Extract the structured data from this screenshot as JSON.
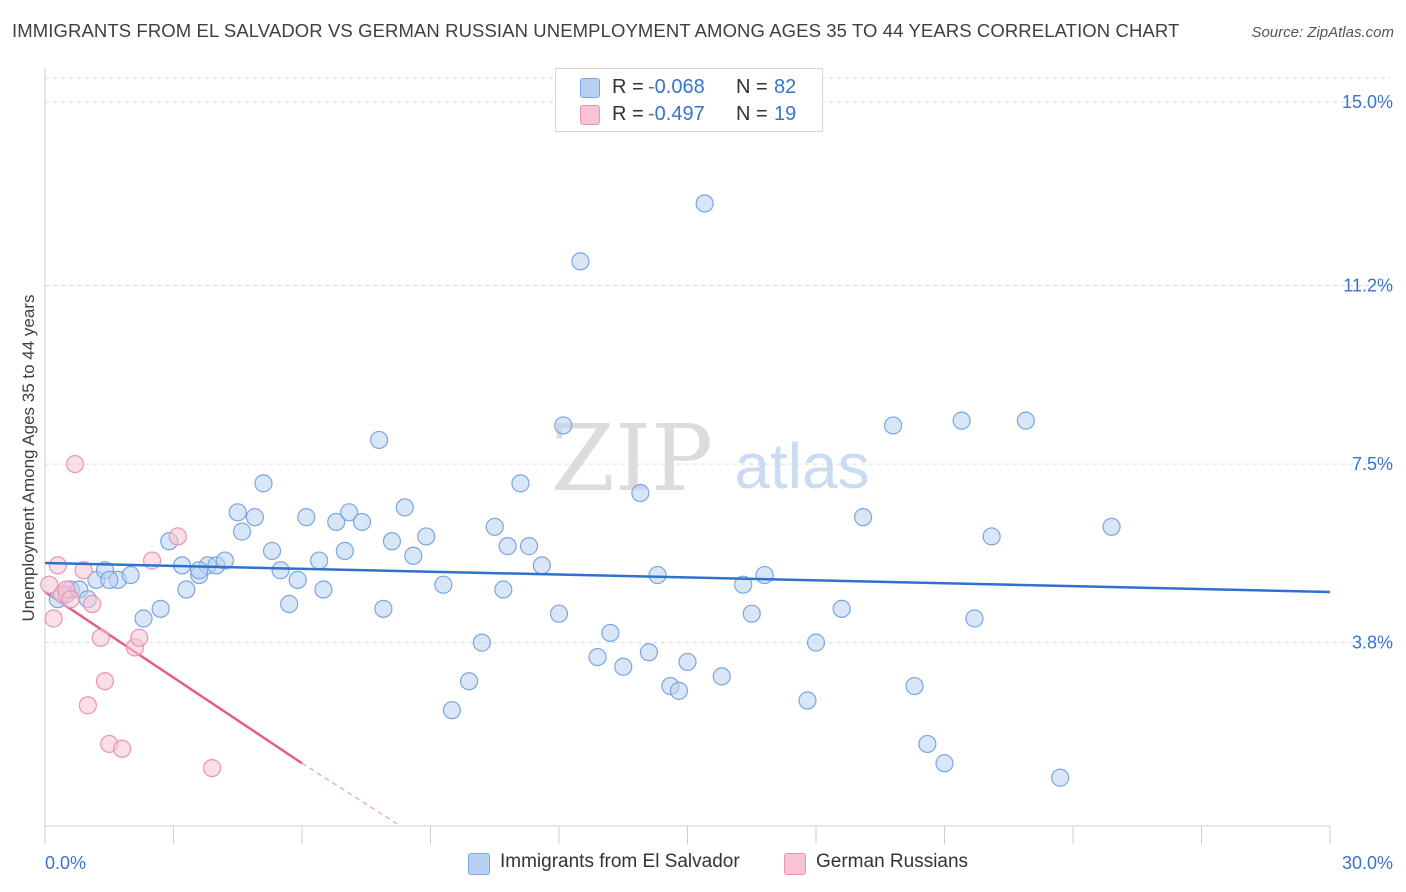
{
  "title": "IMMIGRANTS FROM EL SALVADOR VS GERMAN RUSSIAN UNEMPLOYMENT AMONG AGES 35 TO 44 YEARS CORRELATION CHART",
  "source": "Source: ZipAtlas.com",
  "watermark": {
    "zip": "ZIP",
    "atlas": "atlas"
  },
  "legend": {
    "r_label": "R =",
    "n_label": "N =",
    "series": [
      {
        "r": "-0.068",
        "n": "82"
      },
      {
        "r": "-0.497",
        "n": "19"
      }
    ]
  },
  "colors": {
    "blue_fill": "#b8d1f3",
    "blue_stroke": "#7aa6e0",
    "blue_line": "#2f72cc",
    "pink_fill": "#f8c4d4",
    "pink_stroke": "#ea94b0",
    "pink_line": "#e0608c",
    "value_text": "#3a74c8",
    "grid": "#d9d9d9"
  },
  "chart_data": {
    "type": "scatter",
    "title": "IMMIGRANTS FROM EL SALVADOR VS GERMAN RUSSIAN UNEMPLOYMENT AMONG AGES 35 TO 44 YEARS CORRELATION CHART",
    "xlabel": "",
    "ylabel": "Unemployment Among Ages 35 to 44 years",
    "xlim": [
      0,
      30
    ],
    "ylim": [
      0,
      15.5
    ],
    "x_tick_labels": [
      "0.0%",
      "30.0%"
    ],
    "y_ticks": [
      3.8,
      7.5,
      11.2,
      15.0
    ],
    "y_tick_labels": [
      "3.8%",
      "7.5%",
      "11.2%",
      "15.0%"
    ],
    "grid": true,
    "legend_position": "top-center",
    "series": [
      {
        "name": "Immigrants from El Salvador",
        "color": "blue",
        "points": [
          [
            0.3,
            4.7
          ],
          [
            0.5,
            4.8
          ],
          [
            0.6,
            4.9
          ],
          [
            0.8,
            4.9
          ],
          [
            1.0,
            4.7
          ],
          [
            1.2,
            5.1
          ],
          [
            1.4,
            5.3
          ],
          [
            1.7,
            5.1
          ],
          [
            2.0,
            5.2
          ],
          [
            2.3,
            4.3
          ],
          [
            2.7,
            4.5
          ],
          [
            2.9,
            5.9
          ],
          [
            3.2,
            5.4
          ],
          [
            3.3,
            4.9
          ],
          [
            3.6,
            5.2
          ],
          [
            3.8,
            5.4
          ],
          [
            4.0,
            5.4
          ],
          [
            4.2,
            5.5
          ],
          [
            4.5,
            6.5
          ],
          [
            4.6,
            6.1
          ],
          [
            4.9,
            6.4
          ],
          [
            5.1,
            7.1
          ],
          [
            5.3,
            5.7
          ],
          [
            5.5,
            5.3
          ],
          [
            5.7,
            4.6
          ],
          [
            5.9,
            5.1
          ],
          [
            6.1,
            6.4
          ],
          [
            6.4,
            5.5
          ],
          [
            6.5,
            4.9
          ],
          [
            6.8,
            6.3
          ],
          [
            7.0,
            5.7
          ],
          [
            7.1,
            6.5
          ],
          [
            7.4,
            6.3
          ],
          [
            7.8,
            8.0
          ],
          [
            7.9,
            4.5
          ],
          [
            8.1,
            5.9
          ],
          [
            8.4,
            6.6
          ],
          [
            8.6,
            5.6
          ],
          [
            8.9,
            6.0
          ],
          [
            9.3,
            5.0
          ],
          [
            9.5,
            2.4
          ],
          [
            9.9,
            3.0
          ],
          [
            10.2,
            3.8
          ],
          [
            10.5,
            6.2
          ],
          [
            10.7,
            4.9
          ],
          [
            10.8,
            5.8
          ],
          [
            11.1,
            7.1
          ],
          [
            11.3,
            5.8
          ],
          [
            11.6,
            5.4
          ],
          [
            12.0,
            4.4
          ],
          [
            12.1,
            8.3
          ],
          [
            12.5,
            11.7
          ],
          [
            12.9,
            3.5
          ],
          [
            13.2,
            4.0
          ],
          [
            13.5,
            3.3
          ],
          [
            13.9,
            6.9
          ],
          [
            14.1,
            3.6
          ],
          [
            14.3,
            5.2
          ],
          [
            14.6,
            2.9
          ],
          [
            14.8,
            2.8
          ],
          [
            15.0,
            3.4
          ],
          [
            15.4,
            12.9
          ],
          [
            15.8,
            3.1
          ],
          [
            16.3,
            5.0
          ],
          [
            16.5,
            4.4
          ],
          [
            16.8,
            5.2
          ],
          [
            17.8,
            2.6
          ],
          [
            18.0,
            3.8
          ],
          [
            18.6,
            4.5
          ],
          [
            19.1,
            6.4
          ],
          [
            19.8,
            8.3
          ],
          [
            20.3,
            2.9
          ],
          [
            20.6,
            1.7
          ],
          [
            21.0,
            1.3
          ],
          [
            21.4,
            8.4
          ],
          [
            21.7,
            4.3
          ],
          [
            22.1,
            6.0
          ],
          [
            22.9,
            8.4
          ],
          [
            23.7,
            1.0
          ],
          [
            24.9,
            6.2
          ],
          [
            1.5,
            5.1
          ],
          [
            3.6,
            5.3
          ]
        ],
        "trend_line": {
          "x": [
            0.0,
            30.0
          ],
          "y": [
            5.45,
            4.85
          ]
        }
      },
      {
        "name": "German Russians",
        "color": "pink",
        "points": [
          [
            0.1,
            5.0
          ],
          [
            0.2,
            4.3
          ],
          [
            0.3,
            5.4
          ],
          [
            0.4,
            4.8
          ],
          [
            0.5,
            4.9
          ],
          [
            0.6,
            4.7
          ],
          [
            0.7,
            7.5
          ],
          [
            0.9,
            5.3
          ],
          [
            1.0,
            2.5
          ],
          [
            1.1,
            4.6
          ],
          [
            1.3,
            3.9
          ],
          [
            1.4,
            3.0
          ],
          [
            1.5,
            1.7
          ],
          [
            1.8,
            1.6
          ],
          [
            2.1,
            3.7
          ],
          [
            2.2,
            3.9
          ],
          [
            2.5,
            5.5
          ],
          [
            3.1,
            6.0
          ],
          [
            3.9,
            1.2
          ]
        ],
        "trend_line": {
          "x": [
            0.0,
            6.0
          ],
          "y": [
            4.85,
            1.3
          ]
        },
        "trend_dashed": {
          "x": [
            6.0,
            8.3
          ],
          "y": [
            1.3,
            0.0
          ]
        }
      }
    ]
  },
  "bottom_legend": [
    "Immigrants from El Salvador",
    "German Russians"
  ]
}
